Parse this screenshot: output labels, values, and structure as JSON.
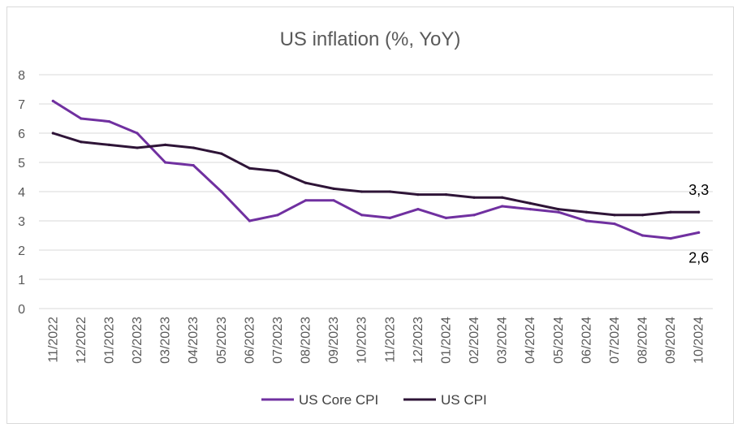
{
  "chart_data": {
    "type": "line",
    "title": "US inflation (%, YoY)",
    "xlabel": "",
    "ylabel": "",
    "ylim": [
      0,
      8
    ],
    "yticks": [
      "0",
      "1",
      "2",
      "3",
      "4",
      "5",
      "6",
      "7",
      "8"
    ],
    "grid": true,
    "legend": "bottom",
    "categories": [
      "11/2022",
      "12/2022",
      "01/2023",
      "02/2023",
      "03/2023",
      "04/2023",
      "05/2023",
      "06/2023",
      "07/2023",
      "08/2023",
      "09/2023",
      "10/2023",
      "11/2023",
      "12/2023",
      "01/2024",
      "02/2024",
      "03/2024",
      "04/2024",
      "05/2024",
      "06/2024",
      "07/2024",
      "08/2024",
      "09/2024",
      "10/2024"
    ],
    "series": [
      {
        "name": "US Core CPI",
        "color": "#7030a0",
        "values": [
          7.1,
          6.5,
          6.4,
          6.0,
          5.0,
          4.9,
          4.0,
          3.0,
          3.2,
          3.7,
          3.7,
          3.2,
          3.1,
          3.4,
          3.1,
          3.2,
          3.5,
          3.4,
          3.3,
          3.0,
          2.9,
          2.5,
          2.4,
          2.6
        ],
        "end_label": "2,6"
      },
      {
        "name": "US CPI",
        "color": "#2e1437",
        "values": [
          6.0,
          5.7,
          5.6,
          5.5,
          5.6,
          5.5,
          5.3,
          4.8,
          4.7,
          4.3,
          4.1,
          4.0,
          4.0,
          3.9,
          3.9,
          3.8,
          3.8,
          3.6,
          3.4,
          3.3,
          3.2,
          3.2,
          3.3,
          3.3
        ],
        "end_label": "3,3"
      }
    ]
  }
}
